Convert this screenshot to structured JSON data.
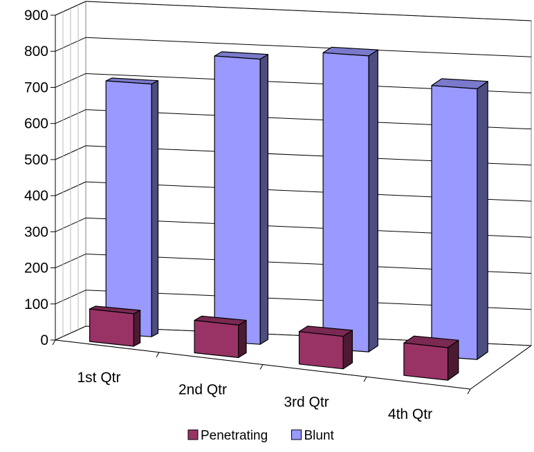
{
  "chart_data": {
    "type": "bar",
    "subtype": "3d-clustered-column",
    "categories": [
      "1st Qtr",
      "2nd Qtr",
      "3rd Qtr",
      "4th Qtr"
    ],
    "series": [
      {
        "name": "Penetrating",
        "values": [
          90,
          90,
          90,
          90
        ],
        "color": "#993366"
      },
      {
        "name": "Blunt",
        "values": [
          700,
          790,
          820,
          750
        ],
        "color": "#9999FF"
      }
    ],
    "ylim": [
      0,
      900
    ],
    "yticks": [
      "0",
      "100",
      "200",
      "300",
      "400",
      "500",
      "600",
      "700",
      "800",
      "900"
    ],
    "grid": true,
    "legend_position": "bottom"
  }
}
